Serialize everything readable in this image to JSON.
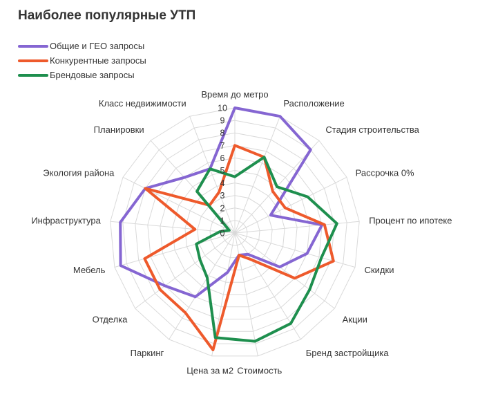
{
  "chart_data": {
    "type": "radar",
    "title": "Наиболее популярные УТП",
    "axes": [
      "Время до метро",
      "Расположение",
      "Стадия строительства",
      "Рассрочка 0%",
      "Процент по ипотеке",
      "Скидки",
      "Акции",
      "Бренд застройщика",
      "Стоимость",
      "Цена за м2",
      "Паркинг",
      "Отделка",
      "Мебель",
      "Инфраструктура",
      "Экология района",
      "Планировки",
      "Класс недвижимости"
    ],
    "r_range": [
      0,
      10
    ],
    "ticks": [
      "0",
      "1",
      "2",
      "3",
      "4",
      "5",
      "6",
      "7",
      "8",
      "9",
      "10"
    ],
    "series": [
      {
        "name": "Общие и ГЕО запросы",
        "color": "#8566d2",
        "values": [
          10,
          10,
          9,
          3.2,
          7,
          6,
          4.5,
          2,
          1.8,
          3.2,
          6,
          7,
          9.5,
          9.2,
          8,
          6,
          5.5
        ]
      },
      {
        "name": "Конкурентные запросы",
        "color": "#ee5a2c",
        "values": [
          7,
          6.5,
          4.5,
          4.5,
          7.2,
          8.2,
          6,
          2.5,
          1.8,
          9.5,
          7.5,
          7.5,
          7.5,
          3.2,
          8,
          3,
          3.5
        ]
      },
      {
        "name": "Брендовые запросы",
        "color": "#1e8f4e",
        "values": [
          4.5,
          6.5,
          5,
          6.5,
          8.2,
          7.2,
          7.5,
          8.5,
          8.8,
          8.5,
          4.2,
          3.5,
          3.2,
          1.2,
          0.5,
          4.5,
          5.5
        ]
      }
    ],
    "grid": true,
    "legend_position": "top-left"
  }
}
